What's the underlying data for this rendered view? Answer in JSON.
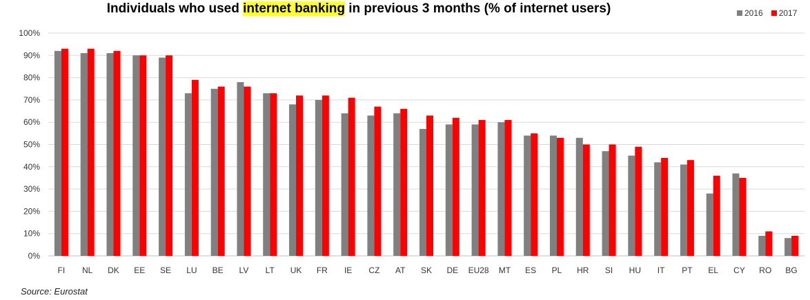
{
  "title": {
    "part1": "Individuals ",
    "part2": "who used ",
    "highlight": "internet banking",
    "part3": " in previous 3 months (% of internet users)"
  },
  "source": "Source: Eurostat",
  "colors": {
    "series_2016": "#808080",
    "series_2017": "#ff0000",
    "gridline": "#d9d9d9",
    "axis": "#bfbfbf",
    "highlight": "#ffff33"
  },
  "chart_data": {
    "type": "bar",
    "title": "Individuals who used internet banking in previous 3 months (% of internet users)",
    "categories": [
      "FI",
      "NL",
      "DK",
      "EE",
      "SE",
      "LU",
      "BE",
      "LV",
      "LT",
      "UK",
      "FR",
      "IE",
      "CZ",
      "AT",
      "SK",
      "DE",
      "EU28",
      "MT",
      "ES",
      "PL",
      "HR",
      "SI",
      "HU",
      "IT",
      "PT",
      "EL",
      "CY",
      "RO",
      "BG"
    ],
    "series": [
      {
        "name": "2016",
        "values": [
          92,
          91,
          91,
          90,
          89,
          73,
          75,
          78,
          73,
          68,
          70,
          64,
          63,
          64,
          57,
          59,
          59,
          60,
          54,
          54,
          53,
          47,
          45,
          42,
          41,
          28,
          37,
          9,
          8
        ]
      },
      {
        "name": "2017",
        "values": [
          93,
          93,
          92,
          90,
          90,
          79,
          76,
          76,
          73,
          72,
          72,
          71,
          67,
          66,
          63,
          62,
          61,
          61,
          55,
          53,
          50,
          50,
          49,
          44,
          43,
          36,
          35,
          11,
          9
        ]
      }
    ],
    "ylim": [
      0,
      100
    ],
    "yticks": [
      "0%",
      "10%",
      "20%",
      "30%",
      "40%",
      "50%",
      "60%",
      "70%",
      "80%",
      "90%",
      "100%"
    ],
    "grid": true,
    "legend_position": "top-right"
  }
}
